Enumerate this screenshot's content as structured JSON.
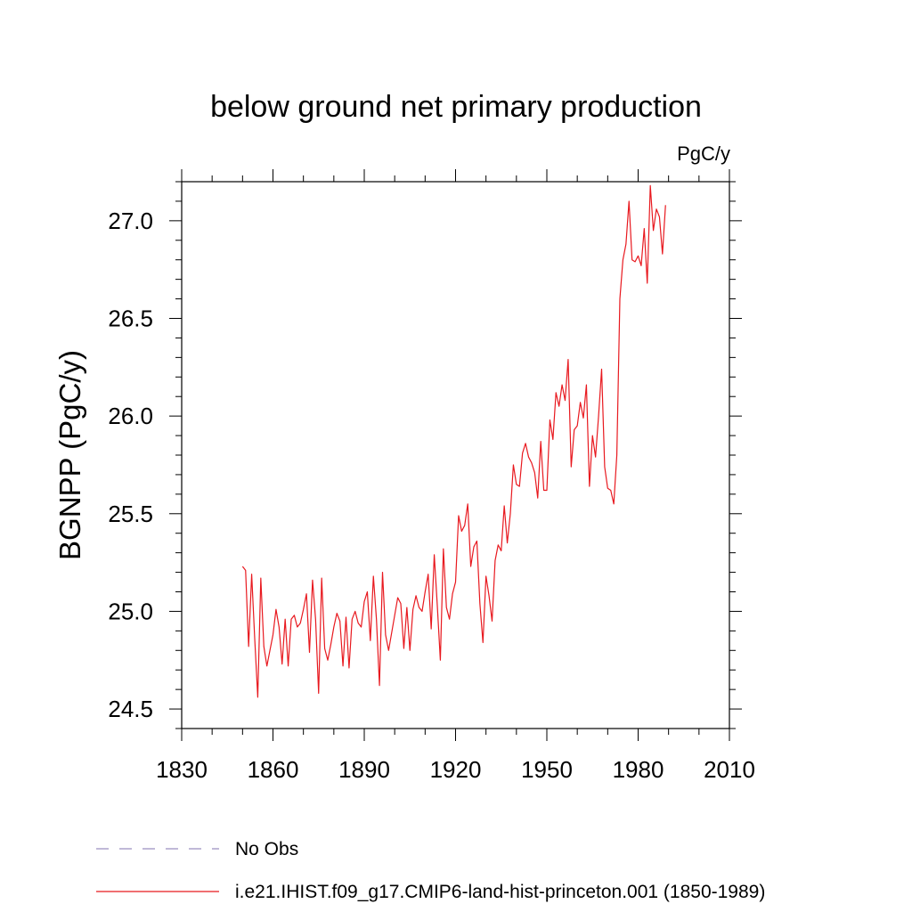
{
  "chart_data": {
    "type": "line",
    "title": "below ground net primary production",
    "units": "PgC/y",
    "ylabel": "BGNPP  (PgC/y)",
    "xlabel": "",
    "xlim": [
      1830,
      2010
    ],
    "ylim": [
      24.4,
      27.2
    ],
    "xticks": [
      1830,
      1860,
      1890,
      1920,
      1950,
      1980,
      2010
    ],
    "xtick_labels": [
      "1830",
      "1860",
      "1890",
      "1920",
      "1950",
      "1980",
      "2010"
    ],
    "yticks": [
      24.5,
      25.0,
      25.5,
      26.0,
      26.5,
      27.0
    ],
    "ytick_labels": [
      "24.5",
      "25.0",
      "25.5",
      "26.0",
      "26.5",
      "27.0"
    ],
    "grid": false,
    "legend_position": "bottom",
    "series": [
      {
        "name": "i.e21.IHIST.f09_g17.CMIP6-land-hist-princeton.001 (1850-1989)",
        "color": "#e8191f",
        "style": "solid",
        "x_start": 1850,
        "x_step": 1,
        "values": [
          25.23,
          25.21,
          24.82,
          25.19,
          24.86,
          24.56,
          25.17,
          24.82,
          24.72,
          24.8,
          24.88,
          25.01,
          24.92,
          24.73,
          24.96,
          24.72,
          24.96,
          24.98,
          24.92,
          24.94,
          25.01,
          25.09,
          24.79,
          25.16,
          24.96,
          24.58,
          25.17,
          24.81,
          24.75,
          24.83,
          24.92,
          24.99,
          24.95,
          24.72,
          24.97,
          24.71,
          24.96,
          25.0,
          24.94,
          24.92,
          25.05,
          25.1,
          24.85,
          25.18,
          24.96,
          24.62,
          25.2,
          24.88,
          24.8,
          24.89,
          24.98,
          25.07,
          25.04,
          24.81,
          25.02,
          24.8,
          25.01,
          25.08,
          25.02,
          25.0,
          25.1,
          25.19,
          24.91,
          25.29,
          25.03,
          24.75,
          25.32,
          25.02,
          24.96,
          25.09,
          25.15,
          25.49,
          25.41,
          25.44,
          25.55,
          25.23,
          25.33,
          25.36,
          25.04,
          24.84,
          25.18,
          25.08,
          24.95,
          25.26,
          25.34,
          25.31,
          25.54,
          25.35,
          25.5,
          25.75,
          25.65,
          25.64,
          25.81,
          25.86,
          25.79,
          25.76,
          25.71,
          25.58,
          25.87,
          25.62,
          25.62,
          25.98,
          25.88,
          26.12,
          26.05,
          26.16,
          26.08,
          26.29,
          25.74,
          25.93,
          25.95,
          26.07,
          25.99,
          26.16,
          25.64,
          25.9,
          25.79,
          26.0,
          26.24,
          25.74,
          25.63,
          25.62,
          25.55,
          25.8,
          26.6,
          26.8,
          26.88,
          27.1,
          26.8,
          26.79,
          26.82,
          26.77,
          26.96,
          26.68,
          27.18,
          26.95,
          27.06,
          27.02,
          26.83,
          27.08
        ]
      },
      {
        "name": "No Obs",
        "color": "#9a8fc0",
        "style": "dashed",
        "values": []
      }
    ]
  }
}
